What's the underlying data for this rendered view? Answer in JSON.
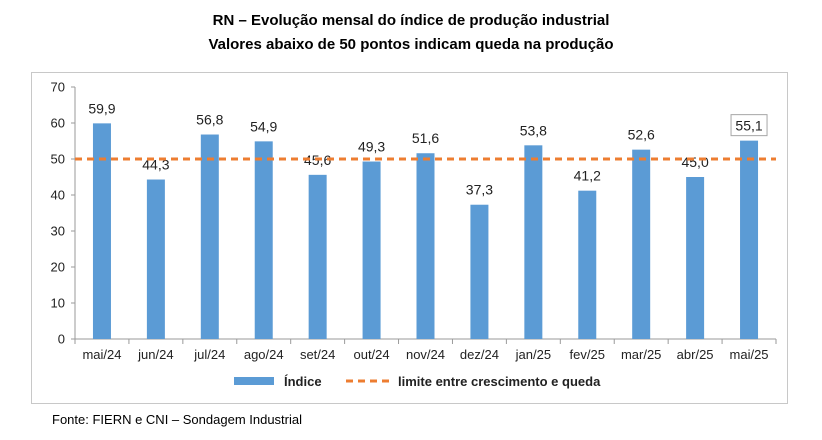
{
  "title": "RN – Evolução mensal do índice de produção industrial",
  "subtitle": "Valores abaixo de 50 pontos indicam queda na produção",
  "source": "Fonte: FIERN e CNI – Sondagem Industrial",
  "colors": {
    "bar": "#5b9bd5",
    "threshold": "#ed7d31",
    "grid": "#d9d9d9"
  },
  "chart_data": {
    "type": "bar",
    "categories": [
      "mai/24",
      "jun/24",
      "jul/24",
      "ago/24",
      "set/24",
      "out/24",
      "nov/24",
      "dez/24",
      "jan/25",
      "fev/25",
      "mar/25",
      "abr/25",
      "mai/25"
    ],
    "series": [
      {
        "name": "Índice",
        "values": [
          59.9,
          44.3,
          56.8,
          54.9,
          45.6,
          49.3,
          51.6,
          37.3,
          53.8,
          41.2,
          52.6,
          45.0,
          55.1
        ]
      }
    ],
    "data_labels": [
      "59,9",
      "44,3",
      "56,8",
      "54,9",
      "45,6",
      "49,3",
      "51,6",
      "37,3",
      "53,8",
      "41,2",
      "52,6",
      "45,0",
      "55,1"
    ],
    "highlighted_label_index": 12,
    "threshold": {
      "name": "limite entre crescimento e queda",
      "value": 50
    },
    "y_ticks": [
      0,
      10,
      20,
      30,
      40,
      50,
      60,
      70
    ],
    "ylim": [
      0,
      70
    ],
    "grid": false,
    "legend_position": "bottom"
  }
}
